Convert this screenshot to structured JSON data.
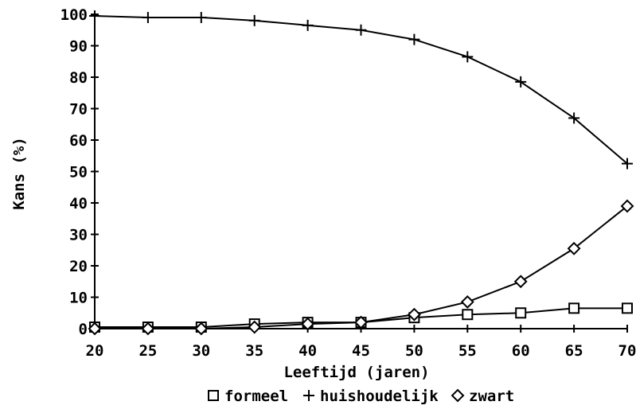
{
  "chart_data": {
    "type": "line",
    "title": "",
    "xlabel": "Leeftijd (jaren)",
    "ylabel": "Kans (%)",
    "x": [
      20,
      25,
      30,
      35,
      40,
      45,
      50,
      55,
      60,
      65,
      70
    ],
    "xlim": [
      20,
      70
    ],
    "ylim": [
      0,
      100
    ],
    "xticks": [
      "20",
      "25",
      "30",
      "35",
      "40",
      "45",
      "50",
      "55",
      "60",
      "65",
      "70"
    ],
    "yticks": [
      "0",
      "10",
      "20",
      "30",
      "40",
      "50",
      "60",
      "70",
      "80",
      "90",
      "100"
    ],
    "grid": false,
    "legend_position": "bottom",
    "series": [
      {
        "name": "formeel",
        "marker": "square",
        "values": [
          0.5,
          0.5,
          0.5,
          1.5,
          2,
          2,
          3.5,
          4.5,
          5,
          6.5,
          6.5
        ]
      },
      {
        "name": "huishoudelijk",
        "marker": "plus",
        "values": [
          99.5,
          99,
          99,
          98,
          96.5,
          95,
          92,
          86.5,
          78.5,
          67,
          52.5
        ]
      },
      {
        "name": "zwart",
        "marker": "diamond",
        "values": [
          0,
          0,
          0,
          0.5,
          1.5,
          2,
          4.5,
          8.5,
          15,
          25.5,
          39
        ]
      }
    ],
    "colors": {
      "line": "#000000"
    }
  }
}
